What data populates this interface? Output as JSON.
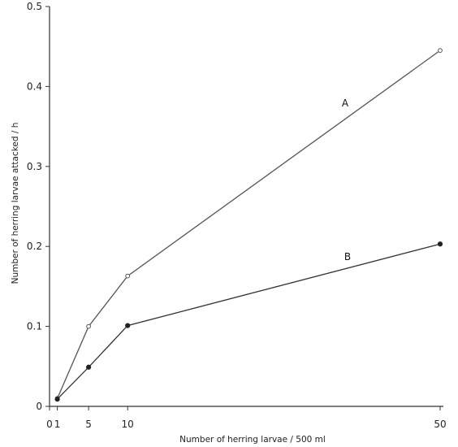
{
  "chart_data": {
    "type": "line",
    "xlabel": "Number of herring larvae / 500 ml",
    "ylabel": "Number of herring larvae attacked / h",
    "x_ticks": [
      0,
      1,
      5,
      10,
      50
    ],
    "y_ticks": [
      0,
      0.1,
      0.2,
      0.3,
      0.4,
      0.5
    ],
    "y_tick_labels": [
      "0",
      "0.1",
      "0.2",
      "0.3",
      "0.4",
      "0.5"
    ],
    "xlim": [
      0,
      50
    ],
    "ylim": [
      0,
      0.5
    ],
    "grid": false,
    "series": [
      {
        "name": "A",
        "marker": "open-circle",
        "color": "#555555",
        "x": [
          1,
          5,
          10,
          50
        ],
        "y": [
          0.01,
          0.1,
          0.163,
          0.445
        ]
      },
      {
        "name": "B",
        "marker": "filled-circle",
        "color": "#222222",
        "x": [
          1,
          5,
          10,
          50
        ],
        "y": [
          0.009,
          0.049,
          0.101,
          0.203
        ]
      }
    ]
  }
}
